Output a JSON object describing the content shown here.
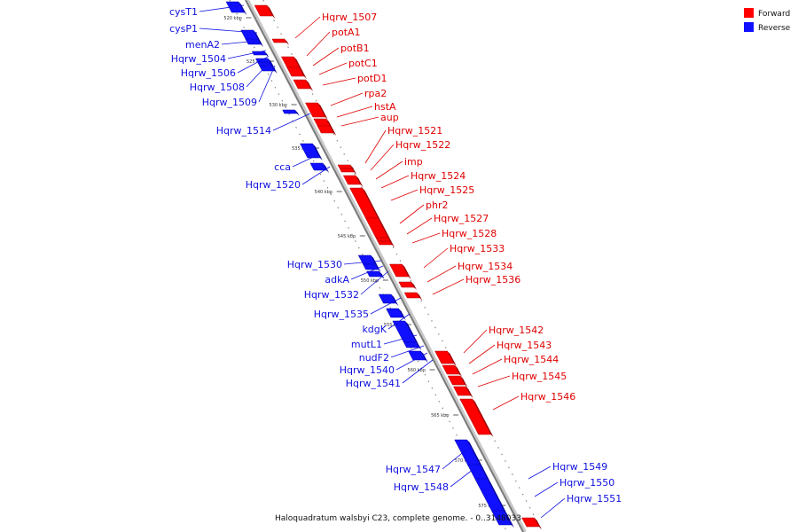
{
  "legend": [
    {
      "label": "Forward",
      "color": "#ff0000"
    },
    {
      "label": "Reverse",
      "color": "#1010ff"
    }
  ],
  "caption": "Haloquadratum walsbyi C23, complete genome. - 0..3148033",
  "ticks": [
    "520 kbp",
    "525 kbp",
    "530 kbp",
    "535 kbp",
    "540 kbp",
    "545 kbp",
    "550 kbp",
    "555 kbp",
    "560 kbp",
    "565 kbp",
    "570 kbp",
    "575 kbp"
  ],
  "forward_genes": [
    "Hqrw_1507",
    "potA1",
    "potB1",
    "potC1",
    "potD1",
    "rpa2",
    "hstA",
    "aup",
    "Hqrw_1521",
    "Hqrw_1522",
    "imp",
    "Hqrw_1524",
    "Hqrw_1525",
    "phr2",
    "Hqrw_1527",
    "Hqrw_1528",
    "Hqrw_1533",
    "Hqrw_1534",
    "Hqrw_1536",
    "Hqrw_1542",
    "Hqrw_1543",
    "Hqrw_1544",
    "Hqrw_1545",
    "Hqrw_1546"
  ],
  "reverse_genes": [
    "cysT1",
    "cysP1",
    "menA2",
    "Hqrw_1504",
    "Hqrw_1506",
    "Hqrw_1508",
    "Hqrw_1509",
    "Hqrw_1514",
    "cca",
    "Hqrw_1520",
    "Hqrw_1530",
    "adkA",
    "Hqrw_1532",
    "Hqrw_1535",
    "kdgK",
    "mutL1",
    "nudF2",
    "Hqrw_1540",
    "Hqrw_1541",
    "Hqrw_1547",
    "Hqrw_1548",
    "Hqrw_1549",
    "Hqrw_1550",
    "Hqrw_1551"
  ]
}
